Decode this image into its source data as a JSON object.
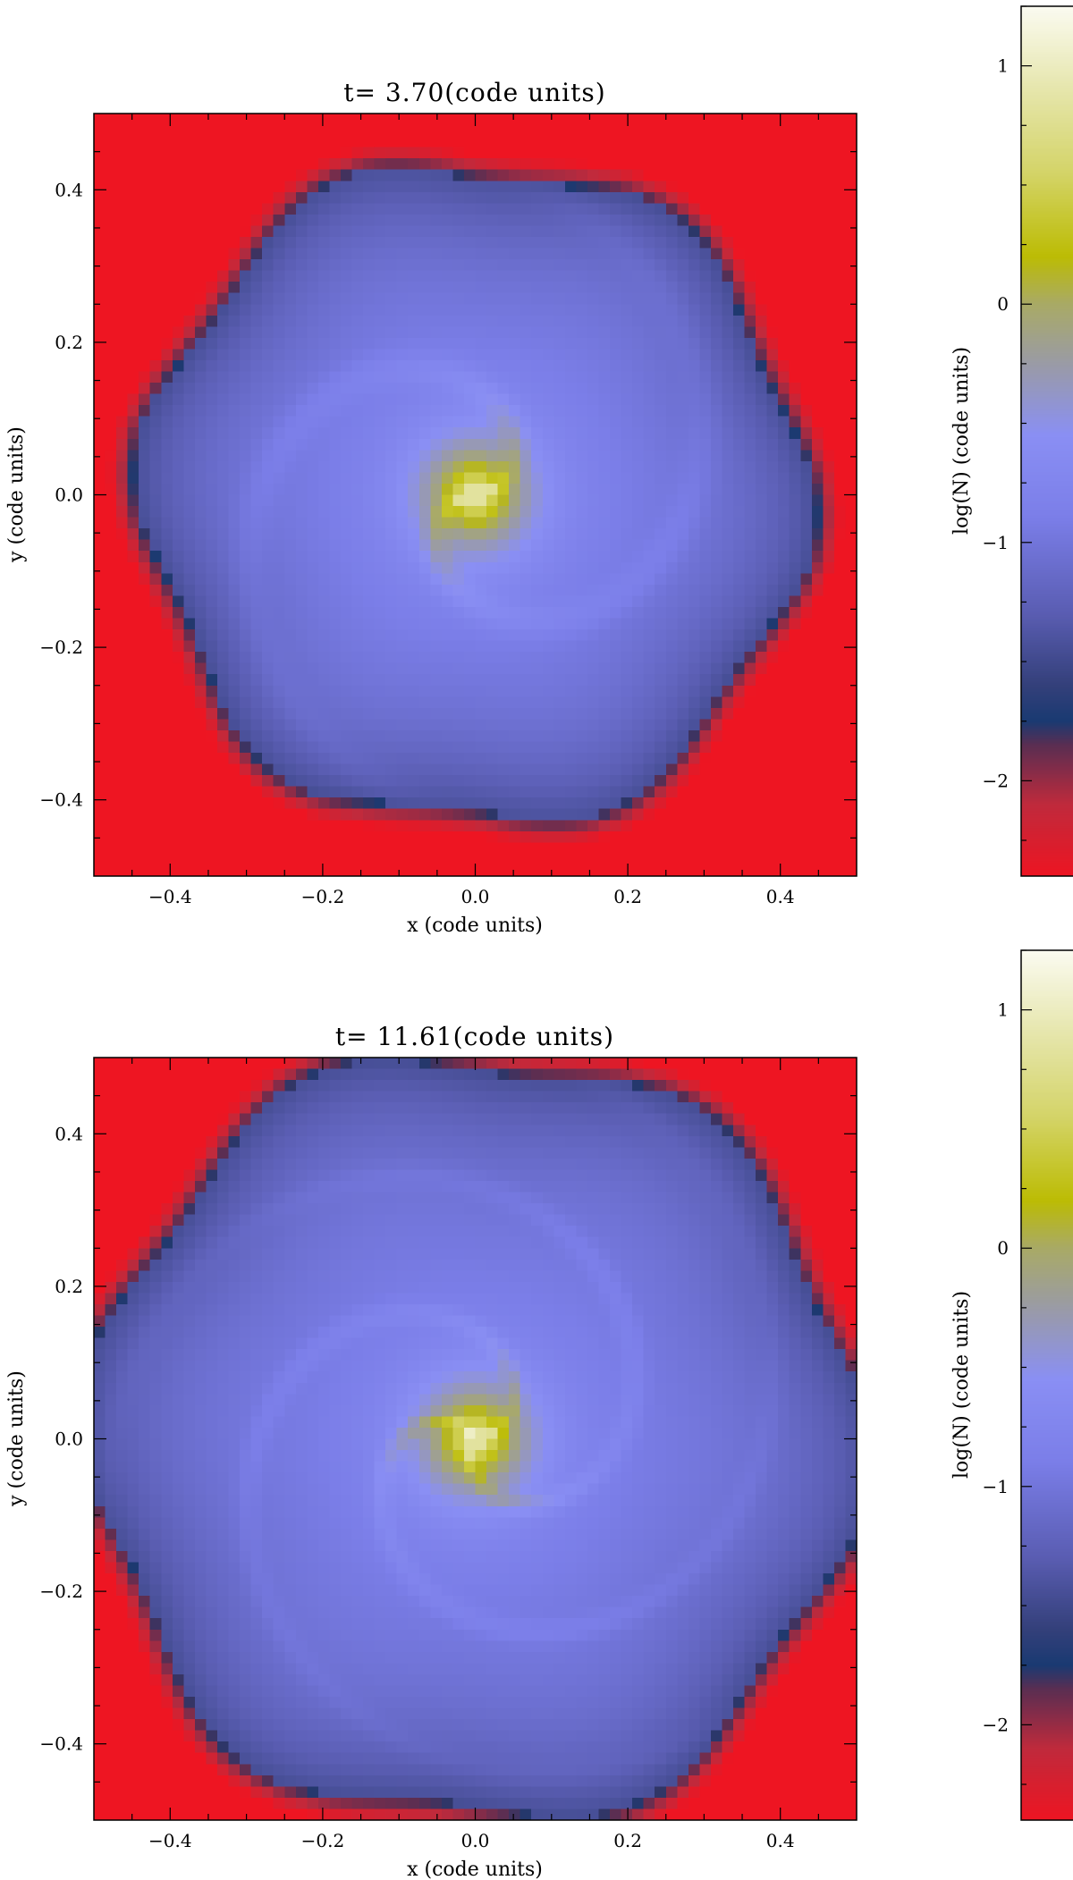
{
  "chart_data": [
    {
      "type": "heatmap",
      "title": "t=  3.70(code units)",
      "xlabel": "x (code units)",
      "ylabel": "y (code units)",
      "xlim": [
        -0.5,
        0.5
      ],
      "ylim": [
        -0.5,
        0.5
      ],
      "xticks": [
        -0.4,
        -0.2,
        0.0,
        0.2,
        0.4
      ],
      "yticks": [
        -0.4,
        -0.2,
        0.0,
        0.2,
        0.4
      ],
      "xtick_labels": [
        "−0.4",
        "−0.2",
        "0.0",
        "0.2",
        "0.4"
      ],
      "ytick_labels": [
        "−0.4",
        "−0.2",
        "0.0",
        "0.2",
        "0.4"
      ],
      "grid": false,
      "colorbar": {
        "label": "log(N) (code units)",
        "range": [
          -2.4,
          1.25
        ],
        "ticks": [
          -2,
          -1,
          0,
          1
        ],
        "tick_labels": [
          "−2",
          "−1",
          "0",
          "1"
        ]
      },
      "features": {
        "cloud_edge_radius": 0.43,
        "edge_lobes": 6,
        "spiral_arms": 2,
        "core_log_density_peak": 1.2,
        "background_log_density": -2.4
      }
    },
    {
      "type": "heatmap",
      "title": "t= 11.61(code units)",
      "xlabel": "x (code units)",
      "ylabel": "y (code units)",
      "xlim": [
        -0.5,
        0.5
      ],
      "ylim": [
        -0.5,
        0.5
      ],
      "xticks": [
        -0.4,
        -0.2,
        0.0,
        0.2,
        0.4
      ],
      "yticks": [
        -0.4,
        -0.2,
        0.0,
        0.2,
        0.4
      ],
      "xtick_labels": [
        "−0.4",
        "−0.2",
        "0.0",
        "0.2",
        "0.4"
      ],
      "ytick_labels": [
        "−0.4",
        "−0.2",
        "0.0",
        "0.2",
        "0.4"
      ],
      "grid": false,
      "colorbar": {
        "label": "log(N) (code units)",
        "range": [
          -2.4,
          1.25
        ],
        "ticks": [
          -2,
          -1,
          0,
          1
        ],
        "tick_labels": [
          "−2",
          "−1",
          "0",
          "1"
        ]
      },
      "features": {
        "cloud_edge_radius": 0.5,
        "edge_lobes": 6,
        "spiral_arms": 3,
        "core_log_density_peak": 1.2,
        "background_log_density": -2.4
      }
    }
  ],
  "colormap": [
    {
      "v": -2.4,
      "color": "#ee1522"
    },
    {
      "v": -2.1,
      "color": "#c02a3c"
    },
    {
      "v": -1.85,
      "color": "#5a2e52"
    },
    {
      "v": -1.75,
      "color": "#1a3a72"
    },
    {
      "v": -1.6,
      "color": "#34407a"
    },
    {
      "v": -1.3,
      "color": "#5a5db2"
    },
    {
      "v": -0.9,
      "color": "#7b7ee8"
    },
    {
      "v": -0.55,
      "color": "#8a8ff4"
    },
    {
      "v": -0.25,
      "color": "#9a9ba6"
    },
    {
      "v": 0.0,
      "color": "#a9aa66"
    },
    {
      "v": 0.2,
      "color": "#bcbc04"
    },
    {
      "v": 0.55,
      "color": "#d4d468"
    },
    {
      "v": 0.9,
      "color": "#e6e6ac"
    },
    {
      "v": 1.25,
      "color": "#fbfbf1"
    }
  ]
}
